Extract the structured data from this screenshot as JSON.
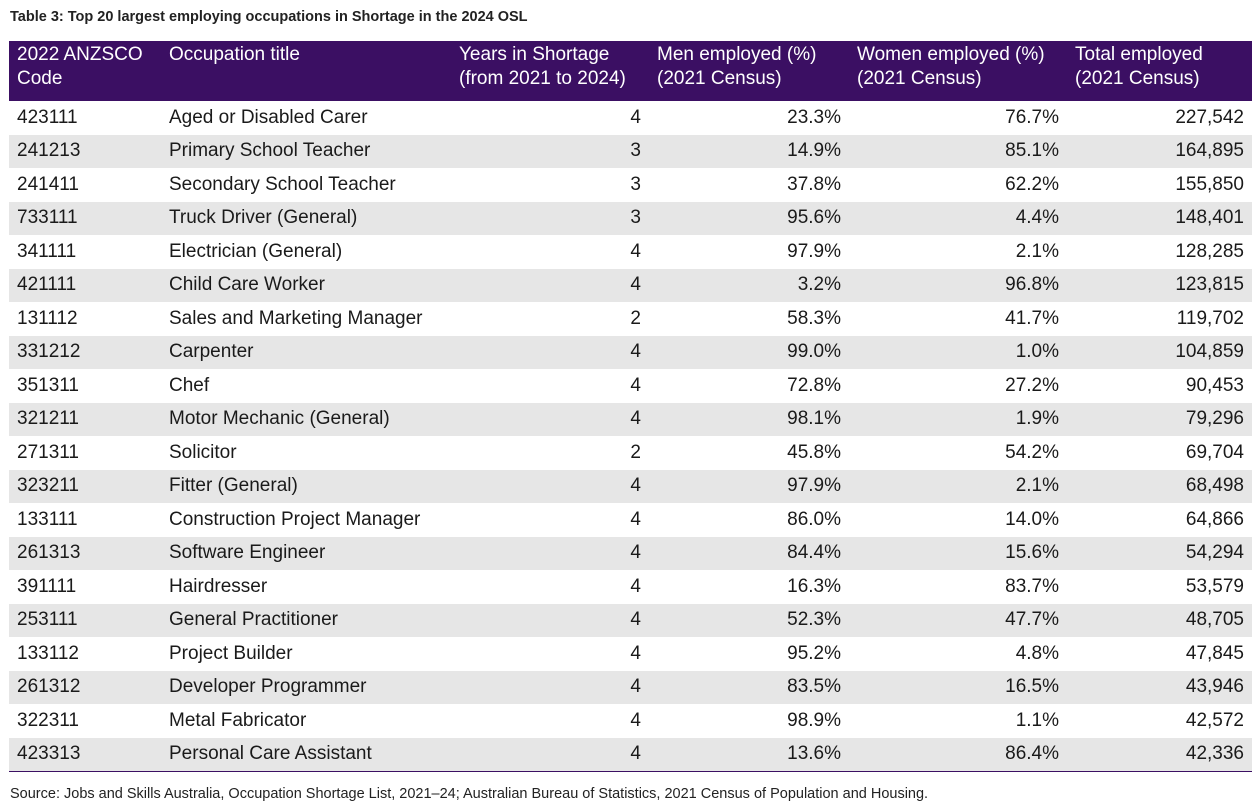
{
  "title": "Table 3: Top 20 largest employing occupations in Shortage in the 2024 OSL",
  "headers": [
    "2022 ANZSCO Code",
    "Occupation title",
    "Years in Shortage (from 2021 to 2024)",
    "Men employed (%) (2021 Census)",
    "Women employed (%) (2021 Census)",
    "Total employed (2021 Census)"
  ],
  "rows": [
    [
      "423111",
      "Aged or Disabled Carer",
      "4",
      "23.3%",
      "76.7%",
      "227,542"
    ],
    [
      "241213",
      "Primary School Teacher",
      "3",
      "14.9%",
      "85.1%",
      "164,895"
    ],
    [
      "241411",
      "Secondary School Teacher",
      "3",
      "37.8%",
      "62.2%",
      "155,850"
    ],
    [
      "733111",
      "Truck Driver (General)",
      "3",
      "95.6%",
      "4.4%",
      "148,401"
    ],
    [
      "341111",
      "Electrician (General)",
      "4",
      "97.9%",
      "2.1%",
      "128,285"
    ],
    [
      "421111",
      "Child Care Worker",
      "4",
      "3.2%",
      "96.8%",
      "123,815"
    ],
    [
      "131112",
      "Sales and Marketing Manager",
      "2",
      "58.3%",
      "41.7%",
      "119,702"
    ],
    [
      "331212",
      "Carpenter",
      "4",
      "99.0%",
      "1.0%",
      "104,859"
    ],
    [
      "351311",
      "Chef",
      "4",
      "72.8%",
      "27.2%",
      "90,453"
    ],
    [
      "321211",
      "Motor Mechanic (General)",
      "4",
      "98.1%",
      "1.9%",
      "79,296"
    ],
    [
      "271311",
      "Solicitor",
      "2",
      "45.8%",
      "54.2%",
      "69,704"
    ],
    [
      "323211",
      "Fitter (General)",
      "4",
      "97.9%",
      "2.1%",
      "68,498"
    ],
    [
      "133111",
      "Construction Project Manager",
      "4",
      "86.0%",
      "14.0%",
      "64,866"
    ],
    [
      "261313",
      "Software Engineer",
      "4",
      "84.4%",
      "15.6%",
      "54,294"
    ],
    [
      "391111",
      "Hairdresser",
      "4",
      "16.3%",
      "83.7%",
      "53,579"
    ],
    [
      "253111",
      "General Practitioner",
      "4",
      "52.3%",
      "47.7%",
      "48,705"
    ],
    [
      "133112",
      "Project Builder",
      "4",
      "95.2%",
      "4.8%",
      "47,845"
    ],
    [
      "261312",
      "Developer Programmer",
      "4",
      "83.5%",
      "16.5%",
      "43,946"
    ],
    [
      "322311",
      "Metal Fabricator",
      "4",
      "98.9%",
      "1.1%",
      "42,572"
    ],
    [
      "423313",
      "Personal Care Assistant",
      "4",
      "13.6%",
      "86.4%",
      "42,336"
    ]
  ],
  "source": "Source: Jobs and Skills Australia, Occupation Shortage List, 2021–24; Australian Bureau of Statistics, 2021 Census of Population and Housing.",
  "colors": {
    "header_bg": "#3b0f63",
    "header_text": "#ffffff",
    "stripe": "#e6e6e6"
  }
}
